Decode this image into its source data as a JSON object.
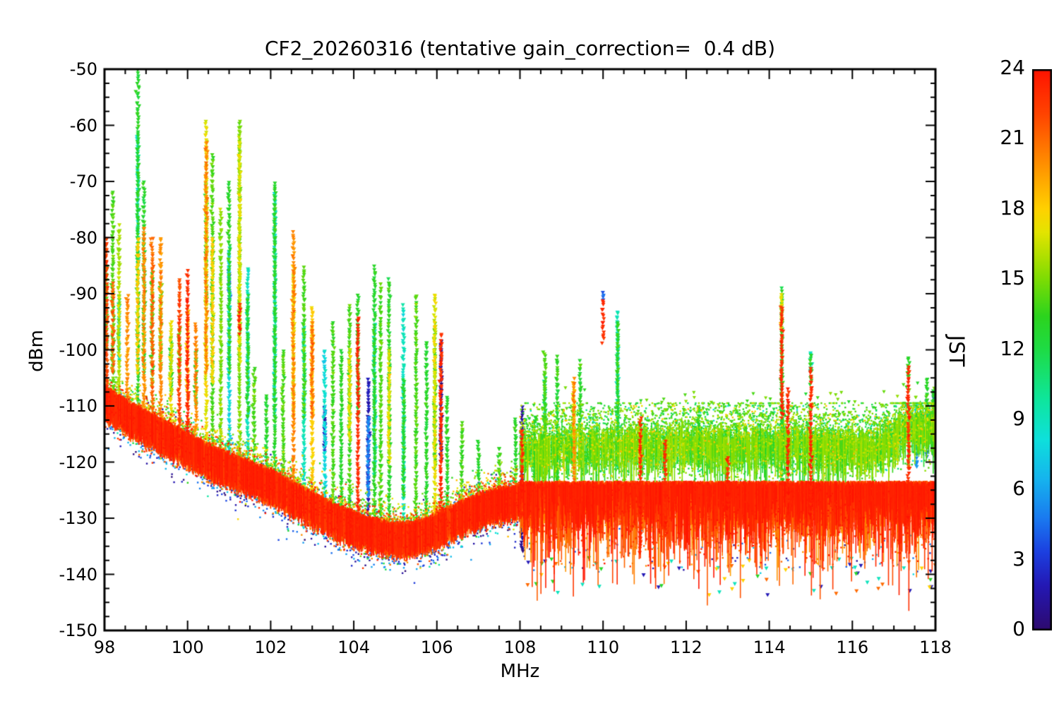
{
  "chart_data": {
    "type": "scatter",
    "title": "CF2_20260316 (tentative gain_correction=  0.4 dB)",
    "xlabel": "MHz",
    "ylabel": "dBm",
    "colorbar_label": "JST",
    "xlim": [
      98,
      118
    ],
    "ylim": [
      -150,
      -50
    ],
    "x_ticks": [
      98,
      100,
      102,
      104,
      106,
      108,
      110,
      112,
      114,
      116,
      118
    ],
    "y_ticks": [
      -150,
      -140,
      -130,
      -120,
      -110,
      -100,
      -90,
      -80,
      -70,
      -60,
      -50
    ],
    "colorbar_ticks": [
      0,
      3,
      6,
      9,
      12,
      15,
      18,
      21,
      24
    ],
    "colorbar_range": [
      0,
      24
    ],
    "grid": false,
    "marker_style": "small filled triangles colored by time of day (JST hours)",
    "colormap_stops": [
      [
        0.0,
        "#2e0a6e"
      ],
      [
        0.08,
        "#2418b4"
      ],
      [
        0.14,
        "#1c40e0"
      ],
      [
        0.2,
        "#1a7af0"
      ],
      [
        0.27,
        "#16b4ee"
      ],
      [
        0.34,
        "#0ee0dc"
      ],
      [
        0.41,
        "#0ee69e"
      ],
      [
        0.5,
        "#1edc46"
      ],
      [
        0.56,
        "#2cd41e"
      ],
      [
        0.625,
        "#7cdc04"
      ],
      [
        0.67,
        "#b4e000"
      ],
      [
        0.71,
        "#e4e400"
      ],
      [
        0.75,
        "#ffd200"
      ],
      [
        0.8,
        "#ffaa00"
      ],
      [
        0.86,
        "#ff7700"
      ],
      [
        0.92,
        "#ff4400"
      ],
      [
        1.0,
        "#ff1300"
      ]
    ],
    "noise_floor": {
      "left_envelope": {
        "x": [
          98,
          98.5,
          99,
          99.5,
          100,
          100.5,
          101,
          101.5,
          102,
          102.5,
          103,
          103.5,
          104,
          104.3,
          104.7,
          105,
          105.4,
          105.8,
          106.2,
          106.6,
          107,
          107.5,
          108
        ],
        "y": [
          -109,
          -111.5,
          -113.5,
          -115.5,
          -117.5,
          -119.5,
          -121,
          -122.5,
          -124,
          -126,
          -128,
          -130,
          -131.5,
          -132.3,
          -133,
          -133.3,
          -133.3,
          -132.5,
          -131,
          -129.5,
          -128.3,
          -127.3,
          -126.6
        ]
      },
      "right_region": {
        "x_start": 108,
        "green_band_center": {
          "x": [
            108,
            109,
            111,
            113,
            115,
            116.5,
            117,
            117.5,
            118
          ],
          "y": [
            -117,
            -116.5,
            -116,
            -116,
            -116,
            -116.5,
            -114.5,
            -112.5,
            -113
          ]
        },
        "green_band_jst_range": [
          11.5,
          16.5
        ],
        "red_band_top": -123.5,
        "red_band_jst_range": [
          19.5,
          24
        ],
        "deep_dropout_min": -144
      }
    },
    "spikes": [
      {
        "x": 98.05,
        "seg": [
          [
            22,
            -108,
            -80
          ],
          [
            14,
            -100,
            -85
          ]
        ]
      },
      {
        "x": 98.2,
        "seg": [
          [
            14,
            -109,
            -72
          ],
          [
            21,
            -104,
            -88
          ]
        ]
      },
      {
        "x": 98.35,
        "seg": [
          [
            16,
            -110,
            -78
          ],
          [
            9,
            -102,
            -90
          ]
        ]
      },
      {
        "x": 98.55,
        "seg": [
          [
            20,
            -110,
            -90
          ]
        ]
      },
      {
        "x": 98.8,
        "seg": [
          [
            13,
            -111,
            -50
          ],
          [
            9,
            -85,
            -62
          ],
          [
            18,
            -104,
            -80
          ]
        ]
      },
      {
        "x": 98.95,
        "seg": [
          [
            20,
            -112,
            -78
          ],
          [
            13,
            -104,
            -70
          ]
        ]
      },
      {
        "x": 99.15,
        "seg": [
          [
            21,
            -112,
            -80
          ],
          [
            14,
            -106,
            -86
          ]
        ]
      },
      {
        "x": 99.35,
        "seg": [
          [
            20,
            -113,
            -80
          ],
          [
            15,
            -104,
            -88
          ]
        ]
      },
      {
        "x": 99.6,
        "seg": [
          [
            17,
            -114,
            -95
          ],
          [
            13,
            -108,
            -98
          ]
        ]
      },
      {
        "x": 99.8,
        "seg": [
          [
            22,
            -114,
            -87
          ],
          [
            15,
            -106,
            -96
          ]
        ]
      },
      {
        "x": 100.0,
        "seg": [
          [
            23,
            -115,
            -86
          ],
          [
            19,
            -110,
            -92
          ]
        ]
      },
      {
        "x": 100.2,
        "seg": [
          [
            20,
            -116,
            -95
          ],
          [
            13,
            -110,
            -100
          ]
        ]
      },
      {
        "x": 100.45,
        "seg": [
          [
            17,
            -117,
            -59
          ],
          [
            20,
            -104,
            -63
          ],
          [
            13,
            -92,
            -70
          ]
        ]
      },
      {
        "x": 100.6,
        "seg": [
          [
            14,
            -117,
            -65
          ],
          [
            18,
            -106,
            -80
          ]
        ]
      },
      {
        "x": 100.8,
        "seg": [
          [
            15,
            -118,
            -75
          ]
        ]
      },
      {
        "x": 101.0,
        "seg": [
          [
            8,
            -119,
            -82
          ],
          [
            4,
            -91,
            -86
          ],
          [
            13,
            -104,
            -70
          ]
        ]
      },
      {
        "x": 101.25,
        "seg": [
          [
            15,
            -120,
            -59
          ],
          [
            17,
            -102,
            -62
          ],
          [
            23,
            -97,
            -92
          ]
        ]
      },
      {
        "x": 101.45,
        "seg": [
          [
            9,
            -121,
            -85
          ],
          [
            13,
            -112,
            -90
          ]
        ]
      },
      {
        "x": 101.6,
        "seg": [
          [
            14,
            -121,
            -103
          ]
        ]
      },
      {
        "x": 101.9,
        "seg": [
          [
            13,
            -122,
            -108
          ]
        ]
      },
      {
        "x": 102.1,
        "seg": [
          [
            13,
            -123,
            -70
          ],
          [
            9,
            -112,
            -72
          ]
        ]
      },
      {
        "x": 102.3,
        "seg": [
          [
            14,
            -124,
            -100
          ]
        ]
      },
      {
        "x": 102.55,
        "seg": [
          [
            20,
            -125,
            -79
          ],
          [
            17,
            -112,
            -85
          ]
        ]
      },
      {
        "x": 102.8,
        "seg": [
          [
            9,
            -126,
            -95
          ],
          [
            14,
            -112,
            -85
          ]
        ]
      },
      {
        "x": 103.0,
        "seg": [
          [
            18,
            -127,
            -92
          ],
          [
            21,
            -112,
            -95
          ]
        ]
      },
      {
        "x": 103.3,
        "seg": [
          [
            8,
            -128,
            -100
          ],
          [
            2,
            -118,
            -110
          ]
        ]
      },
      {
        "x": 103.5,
        "seg": [
          [
            14,
            -129,
            -95
          ]
        ]
      },
      {
        "x": 103.7,
        "seg": [
          [
            13,
            -130,
            -100
          ]
        ]
      },
      {
        "x": 103.9,
        "seg": [
          [
            14,
            -131,
            -92
          ],
          [
            17,
            -116,
            -100
          ]
        ]
      },
      {
        "x": 104.1,
        "seg": [
          [
            23,
            -131,
            -94
          ],
          [
            13,
            -112,
            -90
          ]
        ]
      },
      {
        "x": 104.35,
        "seg": [
          [
            2,
            -131,
            -105
          ],
          [
            5,
            -126,
            -112
          ]
        ]
      },
      {
        "x": 104.5,
        "seg": [
          [
            13,
            -132,
            -85
          ],
          [
            9,
            -122,
            -95
          ]
        ]
      },
      {
        "x": 104.65,
        "seg": [
          [
            14,
            -132,
            -88
          ]
        ]
      },
      {
        "x": 104.85,
        "seg": [
          [
            13,
            -132,
            -87
          ],
          [
            17,
            -120,
            -100
          ]
        ]
      },
      {
        "x": 105.2,
        "seg": [
          [
            9,
            -133,
            -92
          ],
          [
            13,
            -126,
            -105
          ]
        ]
      },
      {
        "x": 105.5,
        "seg": [
          [
            14,
            -133,
            -90
          ]
        ]
      },
      {
        "x": 105.75,
        "seg": [
          [
            13,
            -133,
            -98
          ]
        ]
      },
      {
        "x": 105.95,
        "seg": [
          [
            17,
            -132,
            -90
          ],
          [
            14,
            -121,
            -95
          ]
        ]
      },
      {
        "x": 106.1,
        "seg": [
          [
            23,
            -131,
            -97
          ],
          [
            1,
            -120,
            -98
          ]
        ]
      },
      {
        "x": 106.25,
        "seg": [
          [
            13,
            -130,
            -108
          ]
        ]
      },
      {
        "x": 106.6,
        "seg": [
          [
            14,
            -128,
            -113
          ]
        ]
      },
      {
        "x": 107.0,
        "seg": [
          [
            13,
            -127,
            -116
          ]
        ]
      },
      {
        "x": 107.5,
        "seg": [
          [
            14,
            -126,
            -117
          ]
        ]
      },
      {
        "x": 107.9,
        "seg": [
          [
            13,
            -124,
            -112
          ]
        ]
      },
      {
        "x": 108.05,
        "seg": [
          [
            1,
            -136,
            -110
          ],
          [
            23,
            -130,
            -114
          ]
        ]
      },
      {
        "x": 108.35,
        "seg": [
          [
            13,
            -126,
            -112
          ]
        ]
      },
      {
        "x": 108.6,
        "seg": [
          [
            14,
            -129,
            -100
          ],
          [
            10,
            -116,
            -105
          ]
        ]
      },
      {
        "x": 108.9,
        "seg": [
          [
            13,
            -127,
            -101
          ]
        ]
      },
      {
        "x": 109.3,
        "seg": [
          [
            20,
            -129,
            -105
          ],
          [
            17,
            -116,
            -107
          ]
        ]
      },
      {
        "x": 109.45,
        "seg": [
          [
            13,
            -121,
            -102
          ]
        ]
      },
      {
        "x": 110.0,
        "seg": [
          [
            23,
            -98.5,
            -91
          ],
          [
            4,
            -91,
            -90
          ]
        ]
      },
      {
        "x": 110.35,
        "seg": [
          [
            9,
            -121,
            -93
          ],
          [
            13,
            -116,
            -95
          ]
        ]
      },
      {
        "x": 110.9,
        "seg": [
          [
            23,
            -136,
            -112
          ],
          [
            17,
            -121,
            -114
          ]
        ]
      },
      {
        "x": 111.5,
        "seg": [
          [
            23,
            -133,
            -116
          ],
          [
            1,
            -118,
            -116
          ]
        ]
      },
      {
        "x": 112.3,
        "seg": [
          [
            13,
            -121,
            -110
          ]
        ]
      },
      {
        "x": 113.0,
        "seg": [
          [
            23,
            -130,
            -119
          ]
        ]
      },
      {
        "x": 114.3,
        "seg": [
          [
            13,
            -131,
            -89
          ],
          [
            17,
            -96,
            -90
          ],
          [
            23,
            -112,
            -92
          ]
        ]
      },
      {
        "x": 114.45,
        "seg": [
          [
            23,
            -131,
            -107
          ]
        ]
      },
      {
        "x": 115.0,
        "seg": [
          [
            23,
            -133,
            -103
          ],
          [
            13,
            -106,
            -101
          ],
          [
            9,
            -104,
            -100
          ]
        ]
      },
      {
        "x": 117.35,
        "seg": [
          [
            23,
            -131,
            -103
          ],
          [
            13,
            -105,
            -101
          ]
        ]
      },
      {
        "x": 117.55,
        "seg": [
          [
            5,
            -121,
            -111
          ],
          [
            9,
            -116,
            -110
          ]
        ]
      },
      {
        "x": 117.8,
        "seg": [
          [
            13,
            -116,
            -105
          ],
          [
            4,
            -119,
            -109
          ]
        ]
      },
      {
        "x": 117.95,
        "seg": [
          [
            4,
            -119,
            -108
          ],
          [
            13,
            -114,
            -107
          ]
        ]
      }
    ]
  }
}
